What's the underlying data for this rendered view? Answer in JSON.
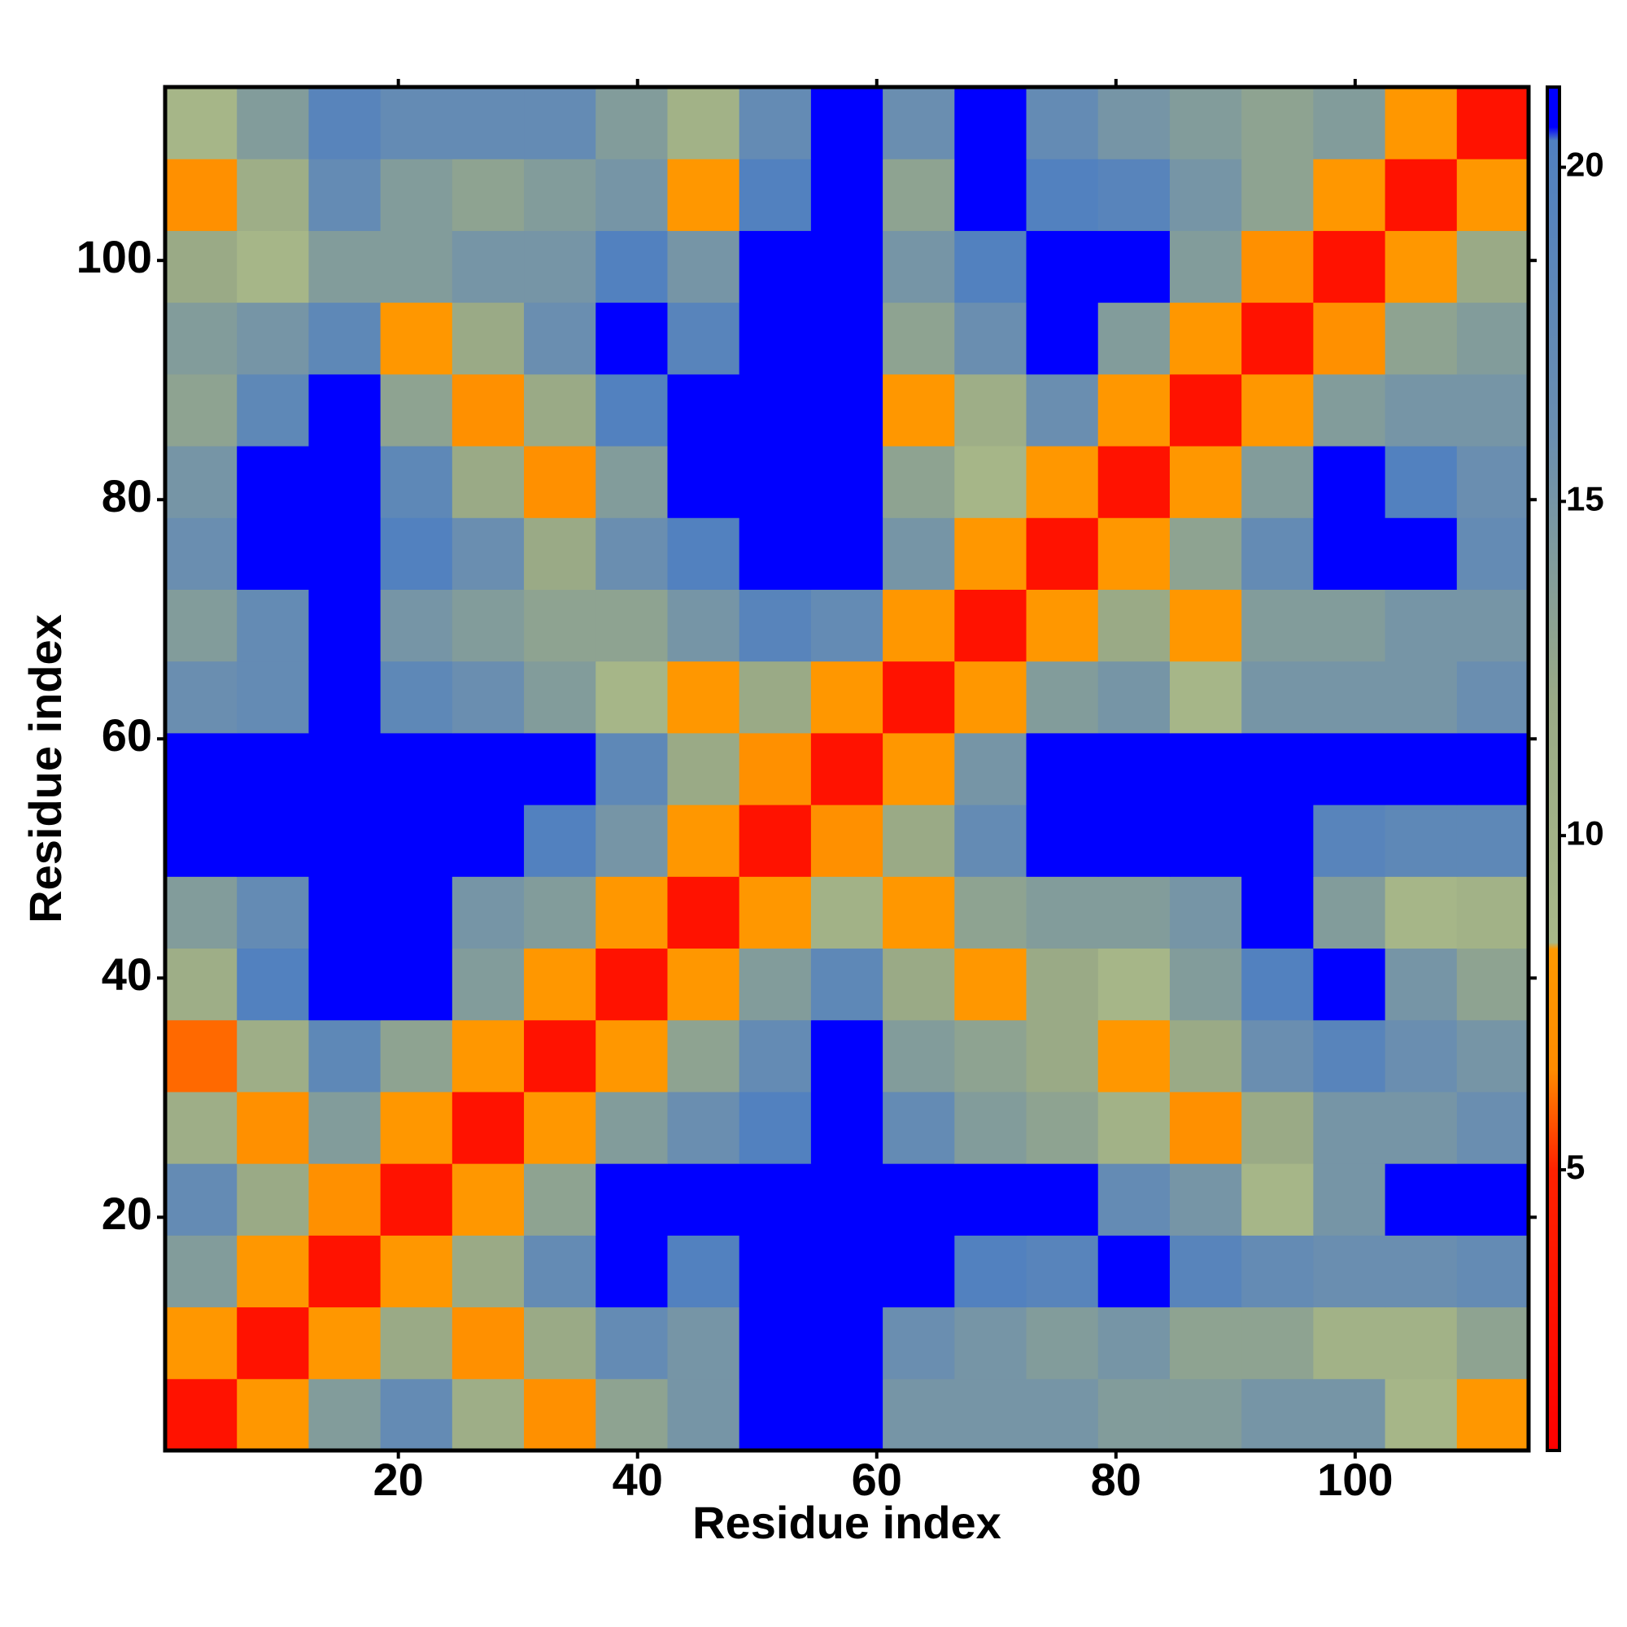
{
  "chart_data": {
    "type": "heatmap",
    "x_label": "Residue index",
    "y_label": "Residue index",
    "x": [
      3.5,
      9.5,
      15.5,
      21.5,
      27.5,
      33.5,
      39.5,
      45.5,
      51.5,
      57.5,
      63.5,
      69.5,
      75.5,
      81.5,
      87.5,
      93.5,
      99.5,
      105.5,
      111.5
    ],
    "y": [
      3.5,
      9.5,
      15.5,
      21.5,
      27.5,
      33.5,
      39.5,
      45.5,
      51.5,
      57.5,
      63.5,
      69.5,
      75.5,
      81.5,
      87.5,
      93.5,
      99.5,
      105.5,
      111.5
    ],
    "z": [
      [
        3,
        8,
        14,
        17,
        11,
        7,
        13,
        15,
        21,
        21,
        15,
        15,
        15,
        14,
        14,
        15,
        15,
        9,
        8
      ],
      [
        8,
        3,
        8,
        12,
        7,
        12,
        17,
        15,
        21,
        21,
        16,
        15,
        14,
        15,
        13,
        13,
        10,
        10,
        13
      ],
      [
        14,
        8,
        3,
        8,
        12,
        17,
        21,
        20,
        21,
        21,
        21,
        20,
        19,
        21,
        19,
        17,
        16,
        16,
        17
      ],
      [
        17,
        12,
        7,
        3,
        8,
        13,
        21,
        21,
        21,
        21,
        21,
        21,
        21,
        17,
        15,
        9,
        15,
        21,
        21
      ],
      [
        11,
        7,
        14,
        8,
        3,
        8,
        14,
        16,
        20,
        21,
        17,
        14,
        13,
        10,
        7,
        12,
        15,
        15,
        16
      ],
      [
        6,
        11,
        18,
        13,
        8,
        3,
        8,
        13,
        17,
        21,
        14,
        13,
        12,
        8,
        12,
        16,
        19,
        16,
        15
      ],
      [
        11,
        20,
        21,
        21,
        14,
        8,
        3,
        8,
        14,
        18,
        12,
        8,
        12,
        9,
        14,
        20,
        21,
        15,
        13
      ],
      [
        14,
        17,
        21,
        21,
        15,
        14,
        8,
        3,
        8,
        10,
        8,
        13,
        14,
        14,
        15,
        21,
        14,
        9,
        10
      ],
      [
        21,
        21,
        21,
        21,
        21,
        20,
        15,
        8,
        3,
        7,
        12,
        17,
        21,
        21,
        21,
        21,
        19,
        18,
        18
      ],
      [
        21,
        21,
        21,
        21,
        21,
        21,
        18,
        12,
        7,
        3,
        8,
        15,
        21,
        21,
        21,
        21,
        21,
        21,
        21
      ],
      [
        16,
        17,
        21,
        18,
        16,
        14,
        9,
        8,
        12,
        8,
        3,
        8,
        14,
        15,
        9,
        15,
        15,
        15,
        16
      ],
      [
        14,
        17,
        21,
        15,
        14,
        13,
        13,
        15,
        19,
        17,
        8,
        3,
        8,
        12,
        8,
        14,
        14,
        15,
        15
      ],
      [
        16,
        21,
        21,
        20,
        16,
        12,
        16,
        20,
        21,
        21,
        15,
        8,
        3,
        8,
        13,
        17,
        21,
        21,
        17
      ],
      [
        15,
        21,
        21,
        18,
        12,
        7,
        14,
        21,
        21,
        21,
        13,
        9,
        8,
        3,
        8,
        14,
        21,
        20,
        16
      ],
      [
        13,
        18,
        21,
        13,
        7,
        12,
        20,
        21,
        21,
        21,
        8,
        11,
        16,
        8,
        3,
        8,
        14,
        15,
        15
      ],
      [
        14,
        15,
        18,
        8,
        12,
        16,
        21,
        19,
        21,
        21,
        13,
        16,
        21,
        14,
        8,
        3,
        7,
        13,
        14
      ],
      [
        12,
        9,
        14,
        14,
        15,
        15,
        20,
        15,
        21,
        21,
        15,
        20,
        21,
        21,
        14,
        7,
        3,
        8,
        12
      ],
      [
        7,
        11,
        17,
        14,
        13,
        14,
        15,
        8,
        20,
        21,
        13,
        21,
        20,
        19,
        15,
        13,
        8,
        3,
        8
      ],
      [
        9,
        14,
        19,
        17,
        17,
        17,
        14,
        10,
        17,
        21,
        16,
        21,
        17,
        15,
        14,
        13,
        14,
        8,
        3
      ]
    ],
    "xlim": [
      0.5,
      114.5
    ],
    "ylim": [
      0.5,
      114.5
    ],
    "xticks": [
      20,
      40,
      60,
      80,
      100
    ],
    "yticks": [
      20,
      40,
      60,
      80,
      100
    ],
    "zlim": [
      0.8,
      21.2
    ],
    "zticks": [
      5,
      10,
      15,
      20
    ],
    "colorscale": [
      [
        0.8,
        "#ff0000"
      ],
      [
        5,
        "#ff2200"
      ],
      [
        6.5,
        "#ff8c00"
      ],
      [
        8.3,
        "#ff9900"
      ],
      [
        8.4,
        "#a8b888"
      ],
      [
        12,
        "#9aaa86"
      ],
      [
        16,
        "#6a8eb0"
      ],
      [
        20.4,
        "#5080c0"
      ],
      [
        20.6,
        "#0000ff"
      ],
      [
        21.2,
        "#0000ff"
      ]
    ]
  }
}
